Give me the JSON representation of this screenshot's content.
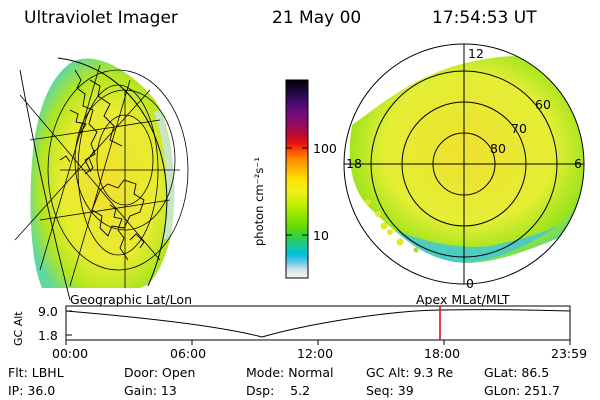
{
  "header": {
    "instrument": "Ultraviolet Imager",
    "date": "21 May 00",
    "time": "17:54:53 UT"
  },
  "colorbar": {
    "unit_label": "photon cm⁻²s⁻¹",
    "ticks": [
      "100",
      "10"
    ],
    "colors": [
      "#000000",
      "#200a40",
      "#4a0a70",
      "#7a0a7a",
      "#9a0a5a",
      "#c00a2a",
      "#e81010",
      "#ff5000",
      "#ff8c00",
      "#ffb400",
      "#ffe000",
      "#f0f020",
      "#c8f000",
      "#96e600",
      "#64dc00",
      "#32d23c",
      "#14c8a0",
      "#00bedc",
      "#64c8e6",
      "#d7e6ec",
      "#f5f5f5"
    ]
  },
  "polar_plot": {
    "mlt_labels": {
      "top": "12",
      "left": "18",
      "right": "6",
      "bottom": "0"
    },
    "mlat_labels": [
      "60",
      "70",
      "80"
    ]
  },
  "timeline": {
    "y_axis_label": "GC Alt",
    "y_ticks": [
      "9.0",
      "1.8"
    ],
    "left_title": "Geographic Lat/Lon",
    "right_title": "Apex MLat/MLT",
    "x_ticks": [
      "00:00",
      "06:00",
      "12:00",
      "18:00",
      "23:59"
    ]
  },
  "status": {
    "filter": "Flt: LBHL",
    "door": "Door: Open",
    "mode": "Mode: Normal",
    "gc_alt": "GC Alt: 9.3 Re",
    "glat": "GLat:  86.5",
    "ip": "IP: 36.0",
    "gain": "Gain: 13",
    "dsp": "Dsp:    5.2",
    "seq": "Seq: 39",
    "glon": "GLon: 251.7"
  }
}
